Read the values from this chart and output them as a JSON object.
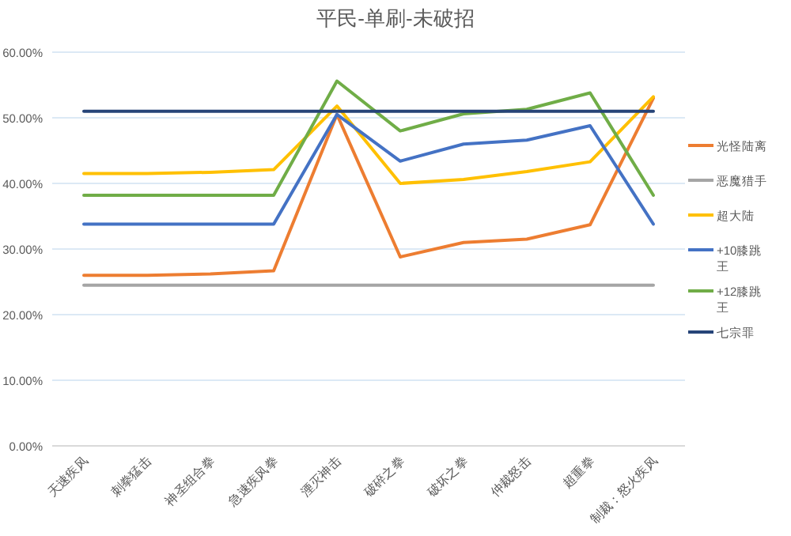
{
  "chart_data": {
    "type": "line",
    "title": "平民-单刷-未破招",
    "categories": [
      "天速疾风",
      "刺拳猛击",
      "神圣组合拳",
      "急速疾风拳",
      "湮灭神击",
      "破碎之拳",
      "破坏之拳",
      "仲裁怒击",
      "超重拳",
      "制裁：怒火疾风"
    ],
    "series": [
      {
        "name": "光怪陆离",
        "color": "#ed7d31",
        "values": [
          26.0,
          26.0,
          26.2,
          26.7,
          50.5,
          28.8,
          31.0,
          31.5,
          33.7,
          53.0
        ]
      },
      {
        "name": "恶魔猎手",
        "color": "#a5a5a5",
        "values": [
          24.5,
          24.5,
          24.5,
          24.5,
          24.5,
          24.5,
          24.5,
          24.5,
          24.5,
          24.5
        ]
      },
      {
        "name": "超大陆",
        "color": "#ffc000",
        "values": [
          41.5,
          41.5,
          41.7,
          42.1,
          51.8,
          40.0,
          40.6,
          41.8,
          43.3,
          53.2
        ]
      },
      {
        "name": "+10膝跳王",
        "color": "#4472c4",
        "values": [
          33.8,
          33.8,
          33.8,
          33.8,
          50.5,
          43.4,
          46.0,
          46.6,
          48.8,
          33.8
        ]
      },
      {
        "name": "+12膝跳王",
        "color": "#70ad47",
        "values": [
          38.2,
          38.2,
          38.2,
          38.2,
          55.6,
          48.0,
          50.6,
          51.3,
          53.8,
          38.2
        ]
      },
      {
        "name": "七宗罪",
        "color": "#264478",
        "values": [
          51.0,
          51.0,
          51.0,
          51.0,
          51.0,
          51.0,
          51.0,
          51.0,
          51.0,
          51.0
        ]
      }
    ],
    "ylim": [
      0,
      60
    ],
    "yticks": [
      {
        "value": 0,
        "label": "0.00%"
      },
      {
        "value": 10,
        "label": "10.00%"
      },
      {
        "value": 20,
        "label": "20.00%"
      },
      {
        "value": 30,
        "label": "30.00%"
      },
      {
        "value": 40,
        "label": "40.00%"
      },
      {
        "value": 50,
        "label": "50.00%"
      },
      {
        "value": 60,
        "label": "60.00%"
      }
    ],
    "grid": "y",
    "legend": "right",
    "marker": "none",
    "line_style": "solid"
  }
}
